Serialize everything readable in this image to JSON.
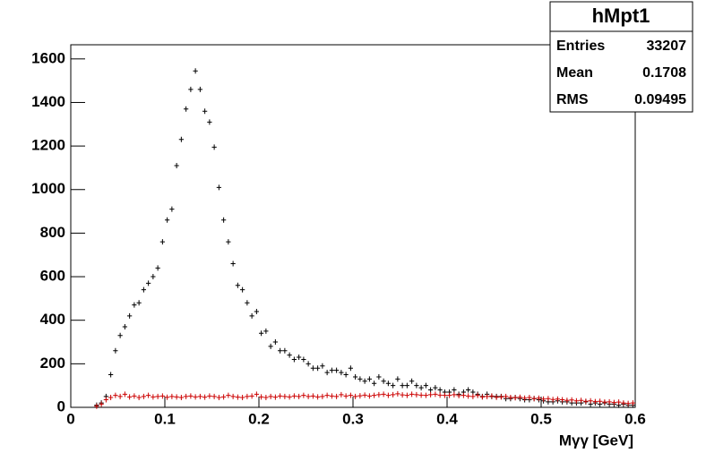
{
  "chart_data": {
    "type": "histogram",
    "title": "hMpt1",
    "xlabel": "Mγγ [GeV]",
    "stats": [
      {
        "label": "Entries",
        "value": "33207"
      },
      {
        "label": "Mean",
        "value": "0.1708"
      },
      {
        "label": "RMS",
        "value": "0.09495"
      }
    ],
    "bins": [
      0.025,
      0.03,
      0.035,
      0.04,
      0.045,
      0.05,
      0.055,
      0.06,
      0.065,
      0.07,
      0.075,
      0.08,
      0.085,
      0.09,
      0.095,
      0.1,
      0.105,
      0.11,
      0.115,
      0.12,
      0.125,
      0.13,
      0.135,
      0.14,
      0.145,
      0.15,
      0.155,
      0.16,
      0.165,
      0.17,
      0.175,
      0.18,
      0.185,
      0.19,
      0.195,
      0.2,
      0.205,
      0.21,
      0.215,
      0.22,
      0.225,
      0.23,
      0.235,
      0.24,
      0.245,
      0.25,
      0.255,
      0.26,
      0.265,
      0.27,
      0.275,
      0.28,
      0.285,
      0.29,
      0.295,
      0.3,
      0.305,
      0.31,
      0.315,
      0.32,
      0.325,
      0.33,
      0.335,
      0.34,
      0.345,
      0.35,
      0.355,
      0.36,
      0.365,
      0.37,
      0.375,
      0.38,
      0.385,
      0.39,
      0.395,
      0.4,
      0.405,
      0.41,
      0.415,
      0.42,
      0.425,
      0.43,
      0.435,
      0.44,
      0.445,
      0.45,
      0.455,
      0.46,
      0.465,
      0.47,
      0.475,
      0.48,
      0.485,
      0.49,
      0.495,
      0.5,
      0.505,
      0.51,
      0.515,
      0.52,
      0.525,
      0.53,
      0.535,
      0.54,
      0.545,
      0.55,
      0.555,
      0.56,
      0.565,
      0.57,
      0.575,
      0.58,
      0.585,
      0.59,
      0.595,
      0.6
    ],
    "series": [
      {
        "color": "#000000",
        "values": [
          10,
          20,
          50,
          150,
          260,
          330,
          370,
          420,
          470,
          480,
          540,
          570,
          600,
          640,
          760,
          860,
          910,
          1110,
          1230,
          1370,
          1460,
          1545,
          1460,
          1360,
          1310,
          1195,
          1010,
          860,
          760,
          660,
          560,
          540,
          480,
          420,
          440,
          340,
          350,
          280,
          300,
          260,
          260,
          240,
          220,
          230,
          220,
          200,
          180,
          180,
          190,
          160,
          170,
          170,
          160,
          150,
          180,
          140,
          130,
          120,
          130,
          110,
          140,
          120,
          110,
          100,
          130,
          100,
          100,
          120,
          100,
          90,
          100,
          80,
          90,
          80,
          70,
          70,
          80,
          60,
          70,
          80,
          70,
          60,
          50,
          60,
          50,
          50,
          50,
          40,
          40,
          45,
          40,
          35,
          35,
          40,
          35,
          30,
          25,
          25,
          30,
          25,
          25,
          20,
          20,
          20,
          25,
          15,
          20,
          15,
          20,
          15,
          15,
          10,
          15,
          10,
          10
        ]
      },
      {
        "color": "#cc0000",
        "values": [
          5,
          15,
          35,
          45,
          55,
          50,
          60,
          48,
          52,
          45,
          50,
          55,
          48,
          50,
          52,
          46,
          50,
          48,
          45,
          50,
          52,
          48,
          50,
          47,
          52,
          50,
          45,
          48,
          55,
          50,
          47,
          45,
          50,
          52,
          60,
          48,
          45,
          50,
          47,
          52,
          50,
          48,
          52,
          50,
          55,
          50,
          52,
          48,
          50,
          55,
          52,
          50,
          58,
          52,
          55,
          50,
          53,
          56,
          52,
          55,
          58,
          60,
          55,
          58,
          62,
          57,
          55,
          60,
          58,
          56,
          55,
          58,
          60,
          56,
          55,
          55,
          58,
          54,
          55,
          52,
          50,
          55,
          48,
          50,
          52,
          46,
          48,
          50,
          45,
          44,
          46,
          42,
          45,
          40,
          42,
          38,
          40,
          36,
          38,
          35,
          32,
          34,
          30,
          32,
          28,
          30,
          26,
          28,
          24,
          25,
          22,
          24,
          20,
          18,
          20
        ]
      }
    ],
    "xlim": [
      0,
      0.6
    ],
    "xticks": [
      0,
      0.1,
      0.2,
      0.3,
      0.4,
      0.5,
      0.6
    ],
    "ylim": [
      0,
      1665
    ],
    "yticks": [
      0,
      200,
      400,
      600,
      800,
      1000,
      1200,
      1400,
      1600
    ]
  }
}
